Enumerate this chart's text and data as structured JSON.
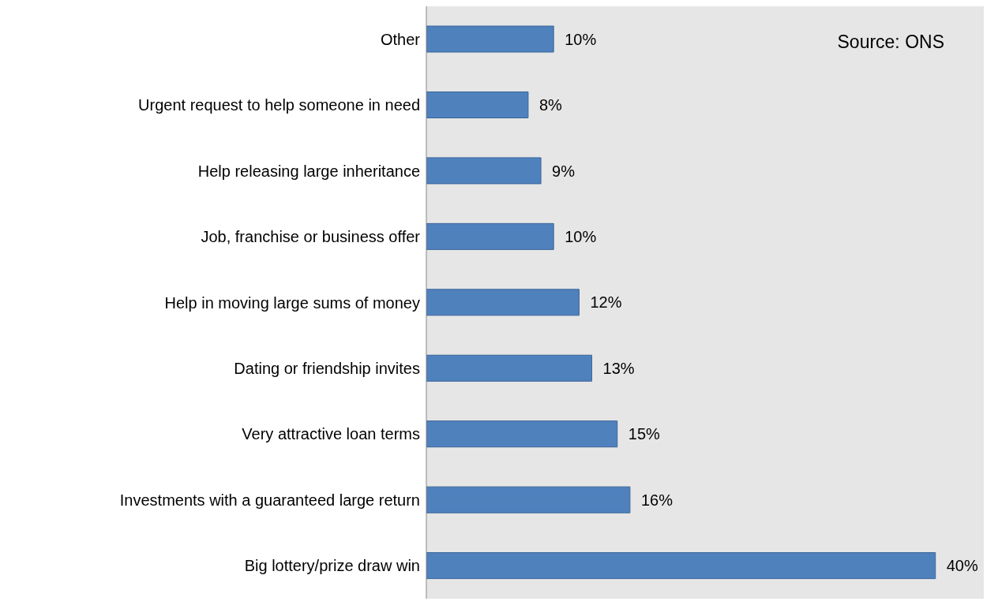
{
  "chart_data": {
    "type": "bar",
    "orientation": "horizontal",
    "categories": [
      "Other",
      "Urgent request to help someone in need",
      "Help releasing large inheritance",
      "Job, franchise or business offer",
      "Help in moving large sums of money",
      "Dating or friendship invites",
      "Very attractive loan terms",
      "Investments with a guaranteed large return",
      "Big lottery/prize draw win"
    ],
    "values": [
      10,
      8,
      9,
      10,
      12,
      13,
      15,
      16,
      40
    ],
    "value_labels": [
      "10%",
      "8%",
      "9%",
      "10%",
      "12%",
      "13%",
      "15%",
      "16%",
      "40%"
    ],
    "color": "#4f81bd",
    "grid": false,
    "annotations": [
      "Source: ONS"
    ]
  }
}
